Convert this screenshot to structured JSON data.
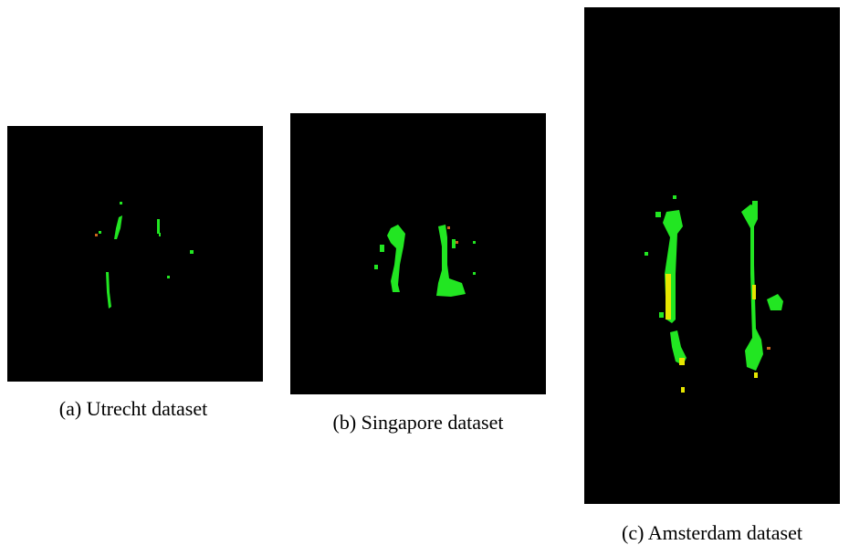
{
  "figures": [
    {
      "caption": "(a) Utrecht dataset"
    },
    {
      "caption": "(b) Singapore dataset"
    },
    {
      "caption": "(c) Amsterdam dataset"
    }
  ]
}
